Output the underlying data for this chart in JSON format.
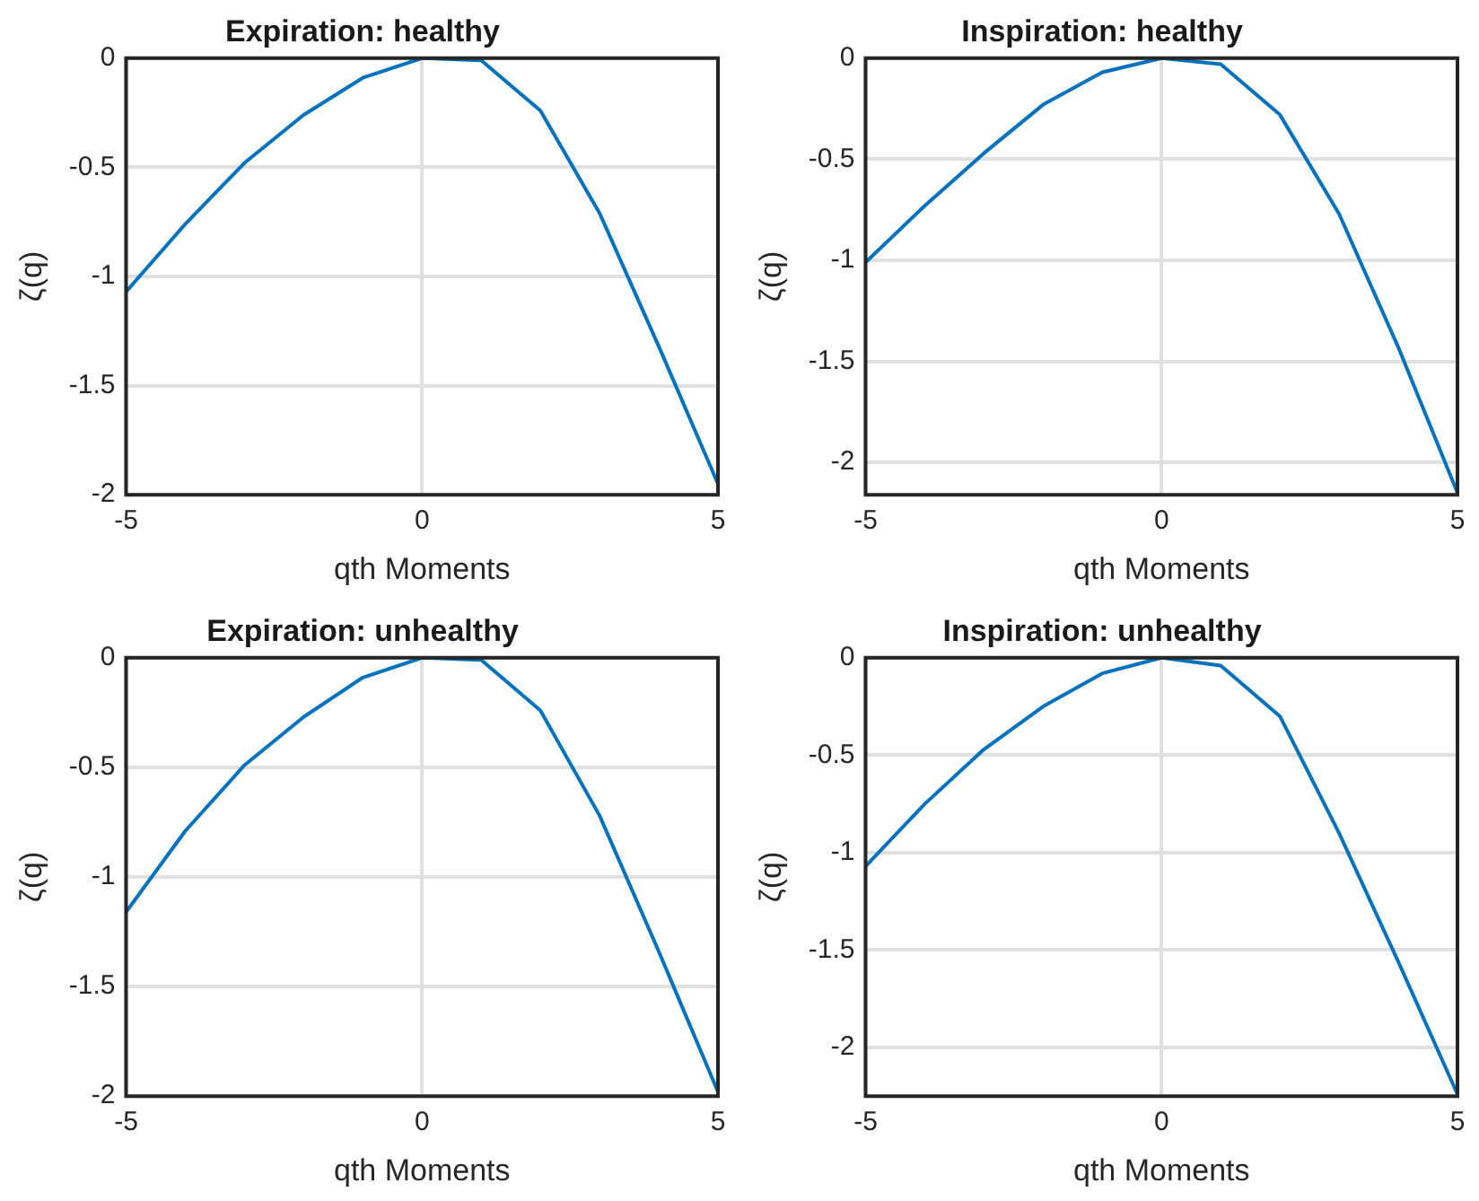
{
  "chart_data": [
    {
      "type": "line",
      "title": "Expiration: healthy",
      "xlabel": "qth Moments",
      "ylabel": "ζ(q)",
      "x": [
        -5,
        -4,
        -3,
        -2,
        -1,
        0,
        1,
        2,
        3,
        4,
        5
      ],
      "series": [
        {
          "color": "#0072bd",
          "values": [
            -1.07,
            -0.76,
            -0.48,
            -0.26,
            -0.09,
            0,
            -0.01,
            -0.24,
            -0.71,
            -1.32,
            -1.95
          ]
        }
      ],
      "xlim": [
        -5,
        5
      ],
      "xticks": [
        -5,
        0,
        5
      ],
      "ylim": [
        -2,
        0
      ],
      "yticks": [
        -2,
        -1.5,
        -1,
        -0.5,
        0
      ],
      "grid": true,
      "marker": "none",
      "line_style": "solid",
      "legend": false
    },
    {
      "type": "line",
      "title": "Inspiration: healthy",
      "xlabel": "qth Moments",
      "ylabel": "ζ(q)",
      "x": [
        -5,
        -4,
        -3,
        -2,
        -1,
        0,
        1,
        2,
        3,
        4,
        5
      ],
      "series": [
        {
          "color": "#0072bd",
          "values": [
            -1.01,
            -0.73,
            -0.47,
            -0.23,
            -0.07,
            0,
            -0.03,
            -0.28,
            -0.77,
            -1.43,
            -2.15
          ]
        }
      ],
      "xlim": [
        -5,
        5
      ],
      "xticks": [
        -5,
        0,
        5
      ],
      "ylim": [
        -2.16,
        0
      ],
      "yticks": [
        -2,
        -1.5,
        -1,
        -0.5,
        0
      ],
      "grid": true,
      "marker": "none",
      "line_style": "solid",
      "legend": false
    },
    {
      "type": "line",
      "title": "Expiration: unhealthy",
      "xlabel": "qth Moments",
      "ylabel": "ζ(q)",
      "x": [
        -5,
        -4,
        -3,
        -2,
        -1,
        0,
        1,
        2,
        3,
        4,
        5
      ],
      "series": [
        {
          "color": "#0072bd",
          "values": [
            -1.16,
            -0.79,
            -0.49,
            -0.27,
            -0.09,
            0,
            -0.01,
            -0.24,
            -0.72,
            -1.34,
            -1.98
          ]
        }
      ],
      "xlim": [
        -5,
        5
      ],
      "xticks": [
        -5,
        0,
        5
      ],
      "ylim": [
        -2,
        0
      ],
      "yticks": [
        -2,
        -1.5,
        -1,
        -0.5,
        0
      ],
      "grid": true,
      "marker": "none",
      "line_style": "solid",
      "legend": false
    },
    {
      "type": "line",
      "title": "Inspiration: unhealthy",
      "xlabel": "qth Moments",
      "ylabel": "ζ(q)",
      "x": [
        -5,
        -4,
        -3,
        -2,
        -1,
        0,
        1,
        2,
        3,
        4,
        5
      ],
      "series": [
        {
          "color": "#0072bd",
          "values": [
            -1.07,
            -0.75,
            -0.47,
            -0.25,
            -0.08,
            0,
            -0.04,
            -0.3,
            -0.9,
            -1.56,
            -2.24
          ]
        }
      ],
      "xlim": [
        -5,
        5
      ],
      "xticks": [
        -5,
        0,
        5
      ],
      "ylim": [
        -2.25,
        0
      ],
      "yticks": [
        -2,
        -1.5,
        -1,
        -0.5,
        0
      ],
      "grid": true,
      "marker": "none",
      "line_style": "solid",
      "legend": false
    }
  ]
}
